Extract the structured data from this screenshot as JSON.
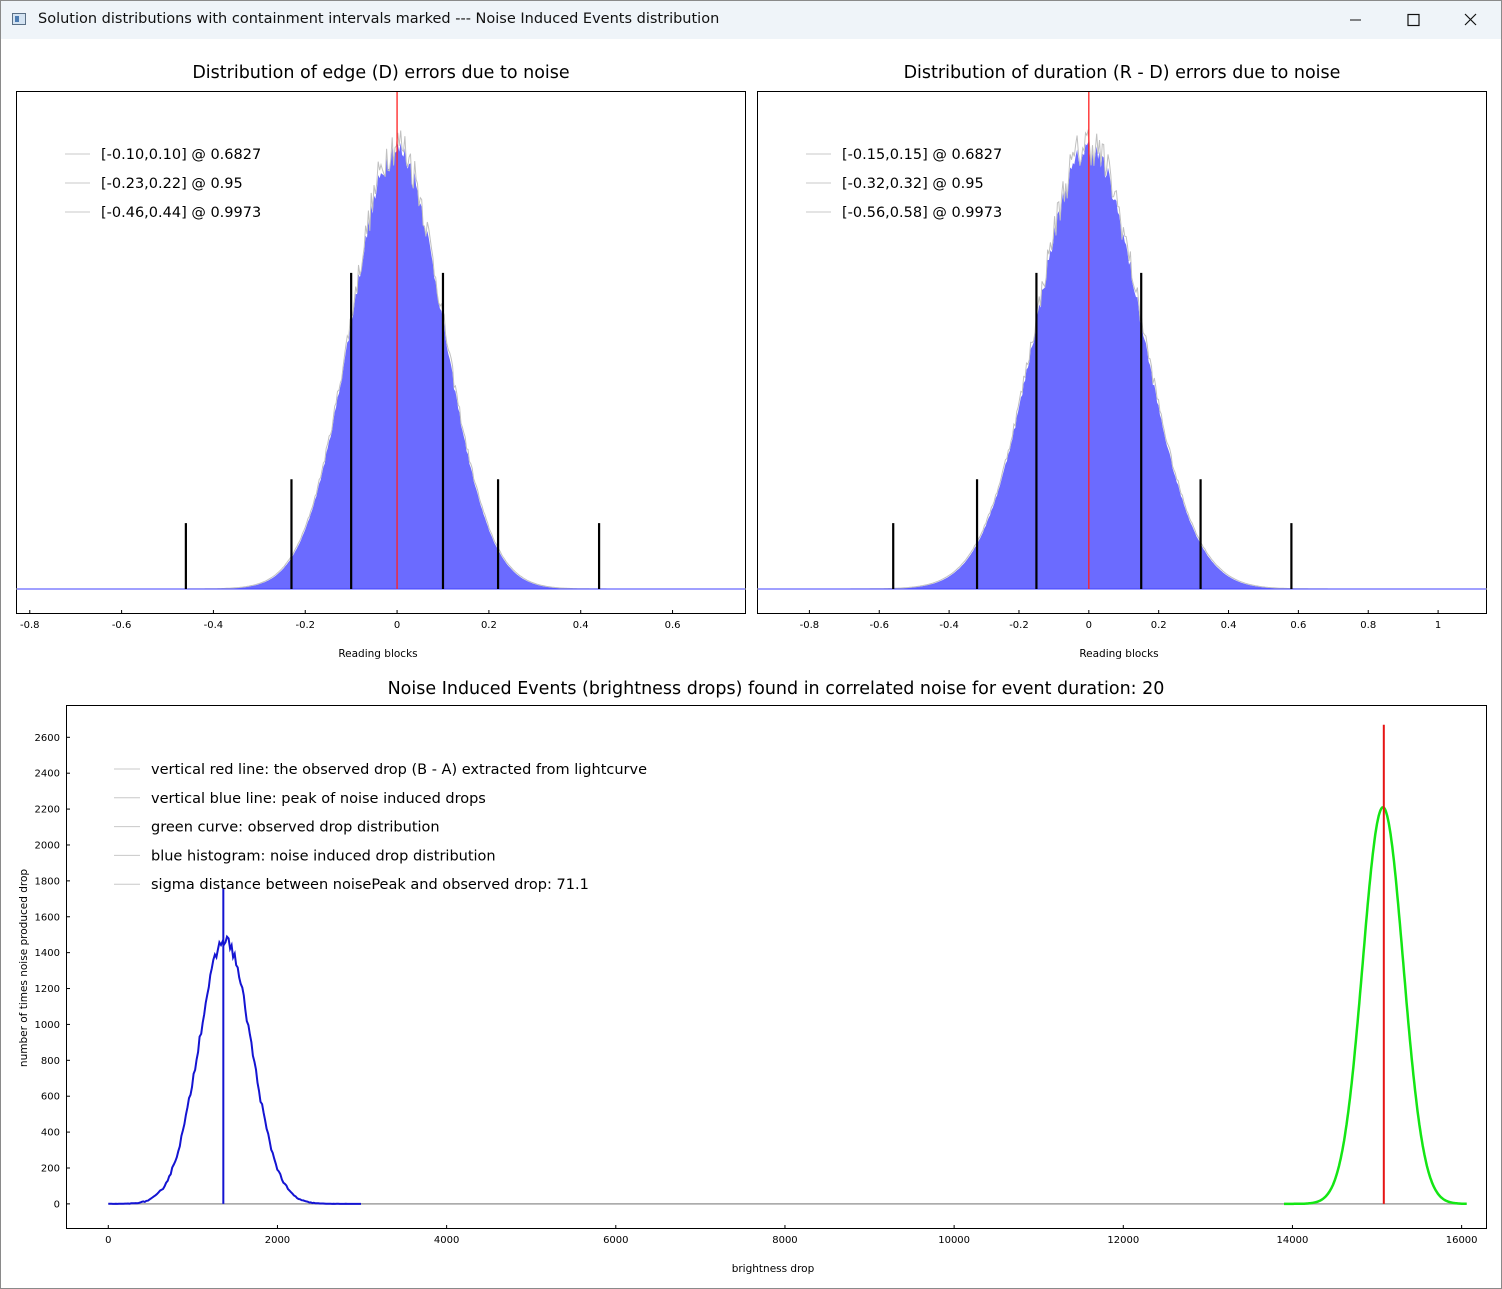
{
  "window": {
    "title": "Solution distributions with containment intervals marked --- Noise Induced Events distribution",
    "controls": {
      "minimize": "minimize",
      "maximize": "maximize",
      "close": "close"
    }
  },
  "chart_data": [
    {
      "id": "edge",
      "type": "bar",
      "title": "Distribution of edge (D) errors due to noise",
      "xlabel": "Reading blocks",
      "ylabel": "",
      "xlim": [
        -0.83,
        0.76
      ],
      "xticks": [
        -0.8,
        -0.6,
        -0.4,
        -0.2,
        0,
        0.2,
        0.4,
        0.6
      ],
      "yaxis_visible": false,
      "distribution": {
        "center": 0.0,
        "sigma": 0.1,
        "peak_relative": 0.95
      },
      "zero_line_x": 0,
      "interval_lines": [
        {
          "x": -0.1,
          "height_relative": 0.72
        },
        {
          "x": 0.1,
          "height_relative": 0.72
        },
        {
          "x": -0.23,
          "height_relative": 0.25
        },
        {
          "x": 0.22,
          "height_relative": 0.25
        },
        {
          "x": -0.46,
          "height_relative": 0.15
        },
        {
          "x": 0.44,
          "height_relative": 0.15
        }
      ],
      "legend_position": "top-left",
      "legend": [
        "[-0.10,0.10] @ 0.6827",
        "[-0.23,0.22] @ 0.95",
        "[-0.46,0.44] @ 0.9973"
      ],
      "colors": {
        "bars": "#6b6bff",
        "outline": "#c0c0c0",
        "zero_line": "#ff2020",
        "interval": "#000000"
      }
    },
    {
      "id": "duration",
      "type": "bar",
      "title": "Distribution of duration (R - D) errors due to noise",
      "xlabel": "Reading blocks",
      "ylabel": "",
      "xlim": [
        -0.95,
        1.14
      ],
      "xticks": [
        -0.8,
        -0.6,
        -0.4,
        -0.2,
        0,
        0.2,
        0.4,
        0.6,
        0.8,
        1
      ],
      "yaxis_visible": false,
      "distribution": {
        "center": 0.0,
        "sigma": 0.15,
        "peak_relative": 0.95
      },
      "zero_line_x": 0,
      "interval_lines": [
        {
          "x": -0.15,
          "height_relative": 0.72
        },
        {
          "x": 0.15,
          "height_relative": 0.72
        },
        {
          "x": -0.32,
          "height_relative": 0.25
        },
        {
          "x": 0.32,
          "height_relative": 0.25
        },
        {
          "x": -0.56,
          "height_relative": 0.15
        },
        {
          "x": 0.58,
          "height_relative": 0.15
        }
      ],
      "legend_position": "top-left",
      "legend": [
        "[-0.15,0.15] @ 0.6827",
        "[-0.32,0.32] @ 0.95",
        "[-0.56,0.58] @ 0.9973"
      ],
      "colors": {
        "bars": "#6b6bff",
        "outline": "#c0c0c0",
        "zero_line": "#ff2020",
        "interval": "#000000"
      }
    },
    {
      "id": "nie",
      "type": "line",
      "title": "Noise Induced Events (brightness drops) found in correlated noise for event duration: 20",
      "xlabel": "brightness drop",
      "ylabel": "number of times noise produced drop",
      "xlim": [
        -500,
        16300
      ],
      "ylim": [
        -140,
        2780
      ],
      "xticks": [
        0,
        2000,
        4000,
        6000,
        8000,
        10000,
        12000,
        14000,
        16000
      ],
      "yticks": [
        0,
        200,
        400,
        600,
        800,
        1000,
        1200,
        1400,
        1600,
        1800,
        2000,
        2200,
        2400,
        2600
      ],
      "series": [
        {
          "name": "blue histogram",
          "center": 1380,
          "sigma": 310,
          "peak": 1470,
          "x_range": [
            0,
            3000
          ]
        },
        {
          "name": "green curve",
          "center": 15070,
          "sigma": 240,
          "peak": 2210,
          "x_range": [
            13900,
            16060
          ]
        }
      ],
      "baseline": {
        "x_range": [
          0,
          16060
        ],
        "y": 0
      },
      "blue_line": {
        "x": 1360,
        "y_top": 1760
      },
      "red_line": {
        "x": 15080,
        "y_top": 2670
      },
      "legend_position": "top-left",
      "legend": [
        "vertical red line: the observed drop (B - A) extracted from lightcurve",
        "vertical blue line: peak of noise induced drops",
        "green curve: observed drop distribution",
        "blue histogram: noise induced drop distribution",
        "sigma distance between noisePeak and observed drop: 71.1"
      ],
      "colors": {
        "histogram": "#1414d2",
        "green": "#14e614",
        "red": "#e61414",
        "baseline": "#a0a0a0"
      }
    }
  ]
}
